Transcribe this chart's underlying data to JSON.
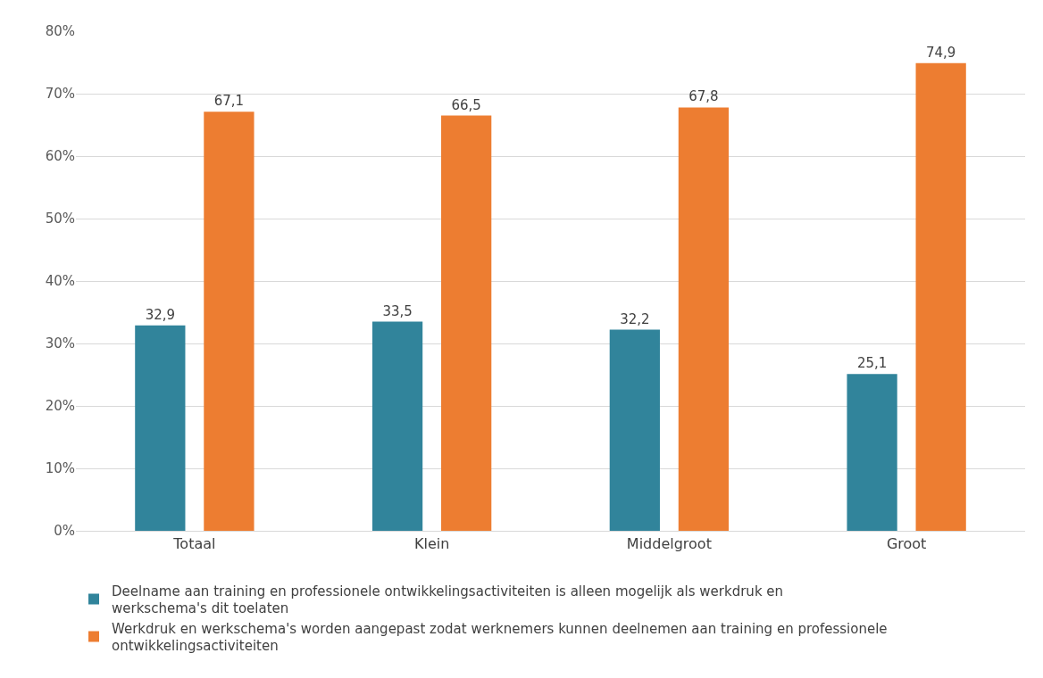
{
  "chart_data": {
    "type": "bar",
    "categories": [
      "Totaal",
      "Klein",
      "Middelgroot",
      "Groot"
    ],
    "series": [
      {
        "name": "Deelname aan training en professionele ontwikkelingsactiviteiten is alleen mogelijk als werkdruk en werkschema's dit toelaten",
        "color": "#31849b",
        "values": [
          32.9,
          33.5,
          32.2,
          25.1
        ],
        "value_labels": [
          "32,9",
          "33,5",
          "32,2",
          "25,1"
        ]
      },
      {
        "name": "Werkdruk en werkschema's worden aangepast zodat werknemers kunnen deelnemen aan training en professionele ontwikkelingsactiviteiten",
        "color": "#ed7d31",
        "values": [
          67.1,
          66.5,
          67.8,
          74.9
        ],
        "value_labels": [
          "67,1",
          "66,5",
          "67,8",
          "74,9"
        ]
      }
    ],
    "ylim": [
      0,
      80
    ],
    "yticks": [
      {
        "value": 0,
        "label": "0%"
      },
      {
        "value": 10,
        "label": "10%"
      },
      {
        "value": 20,
        "label": "20%"
      },
      {
        "value": 30,
        "label": "30%"
      },
      {
        "value": 40,
        "label": "40%"
      },
      {
        "value": 50,
        "label": "50%"
      },
      {
        "value": 60,
        "label": "60%"
      },
      {
        "value": 70,
        "label": "70%"
      },
      {
        "value": 80,
        "label": "80%"
      }
    ],
    "grid": "y",
    "legend": "bottom"
  }
}
